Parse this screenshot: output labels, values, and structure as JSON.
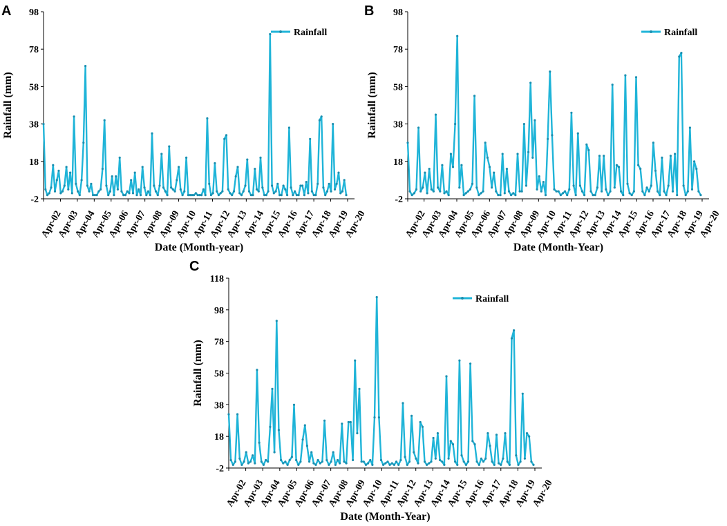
{
  "chart_data": [
    {
      "panel": "A",
      "type": "line",
      "xlabel": "Date (Month-year)",
      "ylabel": "Rainfall (mm)",
      "yticks": [
        -2,
        18,
        38,
        58,
        78,
        98
      ],
      "ylim": [
        -2,
        98
      ],
      "xticks": [
        "Apr-02",
        "Apr-03",
        "Apr-04",
        "Apr-05",
        "Apr-06",
        "Apr-07",
        "Apr-08",
        "Apr-09",
        "Apr-10",
        "Apr-11",
        "Apr-12",
        "Apr-13",
        "Apr-14",
        "Apr-15",
        "Apr-16",
        "Apr-17",
        "Apr-18",
        "Apr-19",
        "Apr-20"
      ],
      "legend": "Rainfall",
      "legend_position": "top-right",
      "color": "#1fb4d8",
      "series": [
        {
          "name": "Rainfall",
          "values": [
            38,
            3,
            0,
            1,
            4,
            16,
            2,
            8,
            13,
            1,
            2,
            5,
            15,
            3,
            12,
            1,
            42,
            6,
            2,
            0,
            8,
            28,
            69,
            5,
            2,
            6,
            0,
            0,
            0,
            2,
            3,
            14,
            40,
            5,
            0,
            2,
            10,
            0,
            10,
            3,
            20,
            2,
            0,
            0,
            2,
            1,
            8,
            1,
            12,
            0,
            3,
            0,
            15,
            4,
            0,
            2,
            0,
            33,
            5,
            2,
            0,
            5,
            22,
            4,
            2,
            0,
            26,
            4,
            3,
            2,
            8,
            15,
            3,
            0,
            2,
            20,
            0,
            0,
            0,
            0,
            1,
            0,
            0,
            0,
            3,
            0,
            41,
            6,
            0,
            1,
            17,
            2,
            0,
            1,
            2,
            30,
            32,
            3,
            1,
            0,
            2,
            10,
            15,
            1,
            0,
            2,
            5,
            19,
            2,
            0,
            0,
            14,
            3,
            2,
            20,
            4,
            0,
            0,
            2,
            86,
            5,
            1,
            2,
            6,
            0,
            0,
            5,
            3,
            0,
            36,
            4,
            0,
            2,
            0,
            0,
            5,
            5,
            0,
            7,
            1,
            30,
            2,
            0,
            0,
            6,
            40,
            42,
            4,
            0,
            2,
            6,
            2,
            38,
            3,
            6,
            12,
            1,
            2,
            8,
            0
          ]
        }
      ]
    },
    {
      "panel": "B",
      "type": "line",
      "xlabel": "Date (Month-Year)",
      "ylabel": "Rainfall (mm)",
      "yticks": [
        -2,
        18,
        38,
        58,
        78,
        98
      ],
      "ylim": [
        -2,
        98
      ],
      "xticks": [
        "Apr-02",
        "Apr-03",
        "Apr-04",
        "Apr-05",
        "Apr-06",
        "Apr-07",
        "Apr-08",
        "Apr-09",
        "Apr-10",
        "Apr-11",
        "Apr-12",
        "Apr-13",
        "Apr-14",
        "Apr-15",
        "Apr-16",
        "Apr-17",
        "Apr-18",
        "Apr-19",
        "Apr-20"
      ],
      "legend": "Rainfall",
      "legend_position": "top-right",
      "color": "#1fb4d8",
      "series": [
        {
          "name": "Rainfall",
          "values": [
            28,
            2,
            0,
            1,
            3,
            36,
            2,
            4,
            12,
            1,
            14,
            3,
            2,
            43,
            4,
            2,
            16,
            1,
            2,
            0,
            22,
            15,
            38,
            85,
            4,
            16,
            0,
            1,
            2,
            3,
            6,
            53,
            4,
            0,
            1,
            2,
            28,
            20,
            15,
            4,
            12,
            2,
            0,
            0,
            22,
            1,
            14,
            2,
            0,
            1,
            0,
            22,
            2,
            2,
            38,
            5,
            23,
            60,
            20,
            40,
            3,
            10,
            2,
            7,
            0,
            30,
            66,
            32,
            3,
            2,
            2,
            0,
            1,
            2,
            0,
            3,
            44,
            5,
            0,
            33,
            5,
            2,
            0,
            27,
            24,
            2,
            0,
            0,
            4,
            21,
            2,
            21,
            3,
            0,
            2,
            59,
            4,
            16,
            15,
            2,
            0,
            64,
            6,
            1,
            0,
            2,
            63,
            16,
            14,
            2,
            0,
            4,
            2,
            5,
            28,
            13,
            2,
            0,
            20,
            2,
            0,
            5,
            21,
            2,
            22,
            0,
            74,
            76,
            5,
            0,
            2,
            36,
            3,
            18,
            14,
            2,
            0
          ]
        }
      ]
    },
    {
      "panel": "C",
      "type": "line",
      "xlabel": "Date (Month-Year)",
      "ylabel": "Rainfall (mm)",
      "yticks": [
        -2,
        18,
        38,
        58,
        78,
        98,
        118
      ],
      "ylim": [
        -2,
        118
      ],
      "xticks": [
        "Apr-02",
        "Apr-03",
        "Apr-04",
        "Apr-05",
        "Apr-06",
        "Apr-07",
        "Apr-08",
        "Apr-09",
        "Apr-10",
        "Apr-11",
        "Apr-12",
        "Apr-13",
        "Apr-14",
        "Apr-15",
        "Apr-16",
        "Apr-17",
        "Apr-18",
        "Apr-19",
        "Apr-20"
      ],
      "legend": "Rainfall",
      "legend_position": "top-right",
      "color": "#1fb4d8",
      "series": [
        {
          "name": "Rainfall",
          "values": [
            32,
            3,
            0,
            2,
            32,
            4,
            0,
            2,
            8,
            1,
            2,
            6,
            1,
            60,
            14,
            2,
            0,
            3,
            2,
            24,
            48,
            8,
            91,
            22,
            3,
            1,
            2,
            0,
            3,
            5,
            38,
            3,
            0,
            2,
            16,
            25,
            12,
            2,
            8,
            1,
            0,
            3,
            1,
            2,
            28,
            3,
            0,
            2,
            8,
            0,
            3,
            1,
            26,
            2,
            1,
            27,
            27,
            3,
            66,
            20,
            48,
            2,
            2,
            0,
            1,
            3,
            0,
            30,
            106,
            30,
            3,
            0,
            1,
            2,
            0,
            1,
            0,
            2,
            0,
            3,
            39,
            5,
            0,
            2,
            31,
            8,
            4,
            1,
            27,
            24,
            2,
            0,
            1,
            2,
            17,
            4,
            20,
            3,
            2,
            0,
            56,
            4,
            15,
            13,
            2,
            0,
            66,
            6,
            2,
            0,
            2,
            64,
            15,
            13,
            2,
            0,
            4,
            2,
            4,
            20,
            12,
            2,
            0,
            19,
            1,
            0,
            4,
            20,
            2,
            0,
            80,
            85,
            6,
            0,
            2,
            45,
            4,
            20,
            18,
            2,
            0
          ]
        }
      ]
    }
  ]
}
